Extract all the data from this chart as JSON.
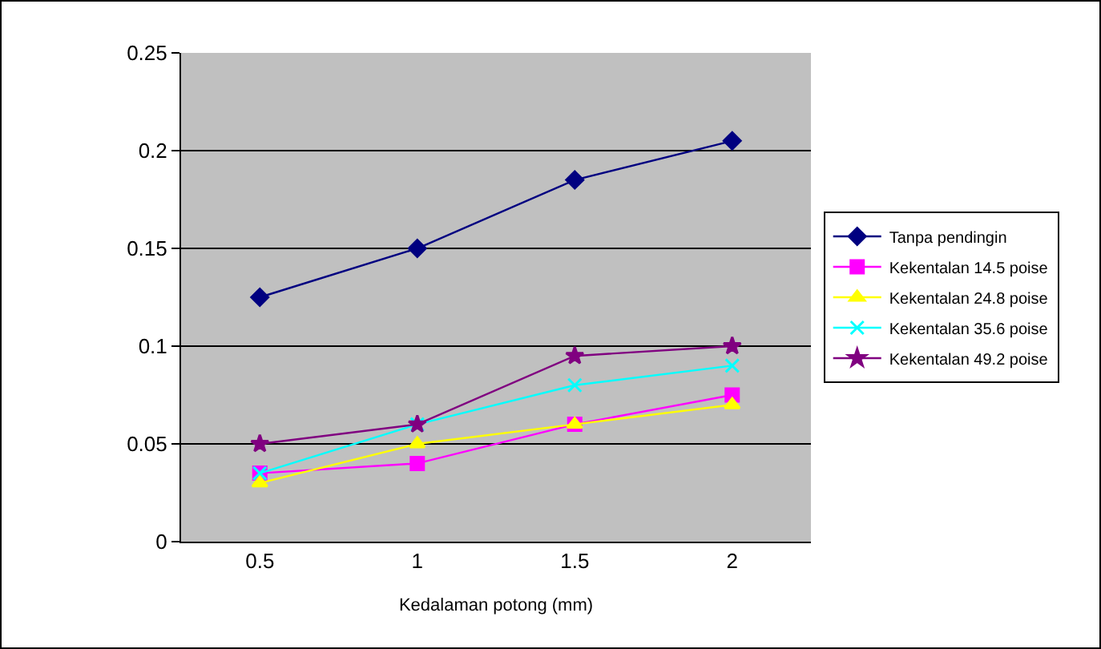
{
  "chart_data": {
    "type": "line",
    "xlabel": "Kedalaman potong (mm)",
    "categories": [
      "0.5",
      "1",
      "1.5",
      "2"
    ],
    "series": [
      {
        "name": "Tanpa pendingin",
        "color": "#000080",
        "marker": "diamond",
        "values": [
          0.125,
          0.15,
          0.185,
          0.205
        ]
      },
      {
        "name": "Kekentalan 14.5 poise",
        "color": "#ff00ff",
        "marker": "square",
        "values": [
          0.035,
          0.04,
          0.06,
          0.075
        ]
      },
      {
        "name": "Kekentalan 24.8 poise",
        "color": "#ffff00",
        "marker": "triangle",
        "values": [
          0.03,
          0.05,
          0.06,
          0.07
        ]
      },
      {
        "name": "Kekentalan 35.6 poise",
        "color": "#00ffff",
        "marker": "cross",
        "values": [
          0.035,
          0.06,
          0.08,
          0.09
        ]
      },
      {
        "name": "Kekentalan 49.2 poise",
        "color": "#800080",
        "marker": "star",
        "values": [
          0.05,
          0.06,
          0.095,
          0.1
        ]
      }
    ],
    "ylim": [
      0,
      0.25
    ],
    "yticks": [
      0,
      0.05,
      0.1,
      0.15,
      0.2,
      0.25
    ],
    "grid": "y",
    "legend": "right"
  }
}
